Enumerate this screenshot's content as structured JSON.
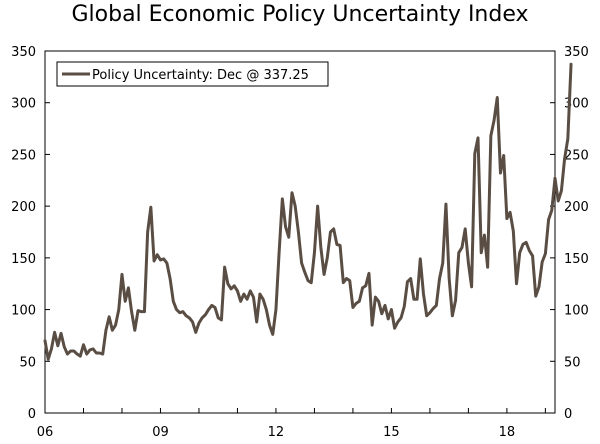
{
  "chart_data": {
    "type": "line",
    "title": "Global Economic Policy Uncertainty Index",
    "xlabel": "",
    "ylabel": "",
    "ylim": [
      0,
      350
    ],
    "yticks": [
      0,
      50,
      100,
      150,
      200,
      250,
      300,
      350
    ],
    "yticks_right": [
      0,
      50,
      100,
      150,
      200,
      250,
      300,
      350
    ],
    "xlim": [
      2006.0,
      2019.25
    ],
    "xticks": [
      {
        "value": 2006,
        "label": "06"
      },
      {
        "value": 2009,
        "label": "09"
      },
      {
        "value": 2012,
        "label": "12"
      },
      {
        "value": 2015,
        "label": "15"
      },
      {
        "value": 2018,
        "label": "18"
      }
    ],
    "grid": false,
    "legend": {
      "position": "top-left",
      "label": "Policy Uncertainty: Dec @ 337.25"
    },
    "line_color": "#5a4e44",
    "series": [
      {
        "name": "Policy Uncertainty: Dec @ 337.25",
        "start_year": 2006,
        "start_month": 1,
        "values": [
          70,
          52,
          62,
          78,
          65,
          77,
          64,
          57,
          60,
          60,
          57,
          55,
          66,
          57,
          61,
          62,
          58,
          58,
          57,
          80,
          93,
          80,
          85,
          100,
          134,
          108,
          121,
          98,
          80,
          99,
          98,
          98,
          175,
          199,
          147,
          153,
          148,
          149,
          145,
          130,
          108,
          100,
          97,
          98,
          94,
          92,
          88,
          78,
          87,
          92,
          95,
          100,
          104,
          102,
          92,
          90,
          141,
          125,
          120,
          123,
          118,
          108,
          115,
          110,
          118,
          112,
          88,
          115,
          110,
          100,
          85,
          76,
          100,
          156,
          207,
          180,
          170,
          213,
          200,
          175,
          145,
          136,
          128,
          126,
          155,
          200,
          160,
          134,
          150,
          175,
          178,
          163,
          162,
          126,
          130,
          128,
          102,
          106,
          108,
          121,
          123,
          135,
          85,
          112,
          108,
          96,
          104,
          91,
          100,
          82,
          88,
          92,
          103,
          127,
          130,
          110,
          110,
          149,
          115,
          94,
          97,
          101,
          104,
          130,
          145,
          202,
          130,
          94,
          109,
          155,
          160,
          178,
          145,
          122,
          251,
          266,
          155,
          172,
          141,
          268,
          283,
          305,
          232,
          249,
          188,
          194,
          176,
          125,
          155,
          163,
          165,
          157,
          152,
          113,
          122,
          146,
          154,
          187,
          196,
          227,
          205,
          215,
          246,
          265,
          337.25
        ]
      }
    ]
  }
}
